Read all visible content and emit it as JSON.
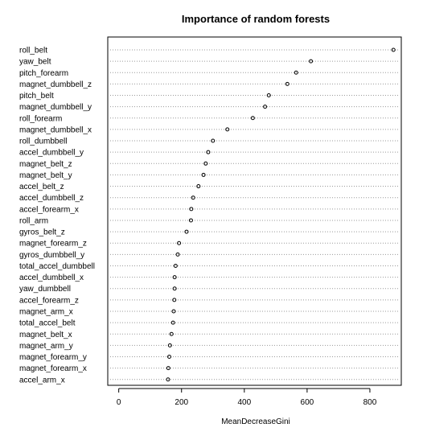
{
  "chart_data": {
    "type": "scatter",
    "subtype": "dotchart",
    "title": "Importance of random forests",
    "xlabel": "MeanDecreaseGini",
    "ylabel": "",
    "xlim": [
      -35,
      900
    ],
    "xticks": [
      0,
      200,
      400,
      600,
      800
    ],
    "grid": "dotted-horizontal",
    "legend": "none",
    "colors": {
      "points": "#000000",
      "guides": "#999999",
      "axes": "#000000",
      "text": "#000000"
    },
    "categories": [
      "roll_belt",
      "yaw_belt",
      "pitch_forearm",
      "magnet_dumbbell_z",
      "pitch_belt",
      "magnet_dumbbell_y",
      "roll_forearm",
      "magnet_dumbbell_x",
      "roll_dumbbell",
      "accel_dumbbell_y",
      "magnet_belt_z",
      "magnet_belt_y",
      "accel_belt_z",
      "accel_dumbbell_z",
      "accel_forearm_x",
      "roll_arm",
      "gyros_belt_z",
      "magnet_forearm_z",
      "gyros_dumbbell_y",
      "total_accel_dumbbell",
      "accel_dumbbell_x",
      "yaw_dumbbell",
      "accel_forearm_z",
      "magnet_arm_x",
      "total_accel_belt",
      "magnet_belt_x",
      "magnet_arm_y",
      "magnet_forearm_y",
      "magnet_forearm_x",
      "accel_arm_x"
    ],
    "values": [
      875,
      612,
      565,
      537,
      478,
      466,
      427,
      346,
      300,
      285,
      277,
      270,
      254,
      237,
      231,
      230,
      216,
      192,
      188,
      181,
      178,
      178,
      177,
      175,
      173,
      168,
      163,
      161,
      158,
      157
    ]
  }
}
